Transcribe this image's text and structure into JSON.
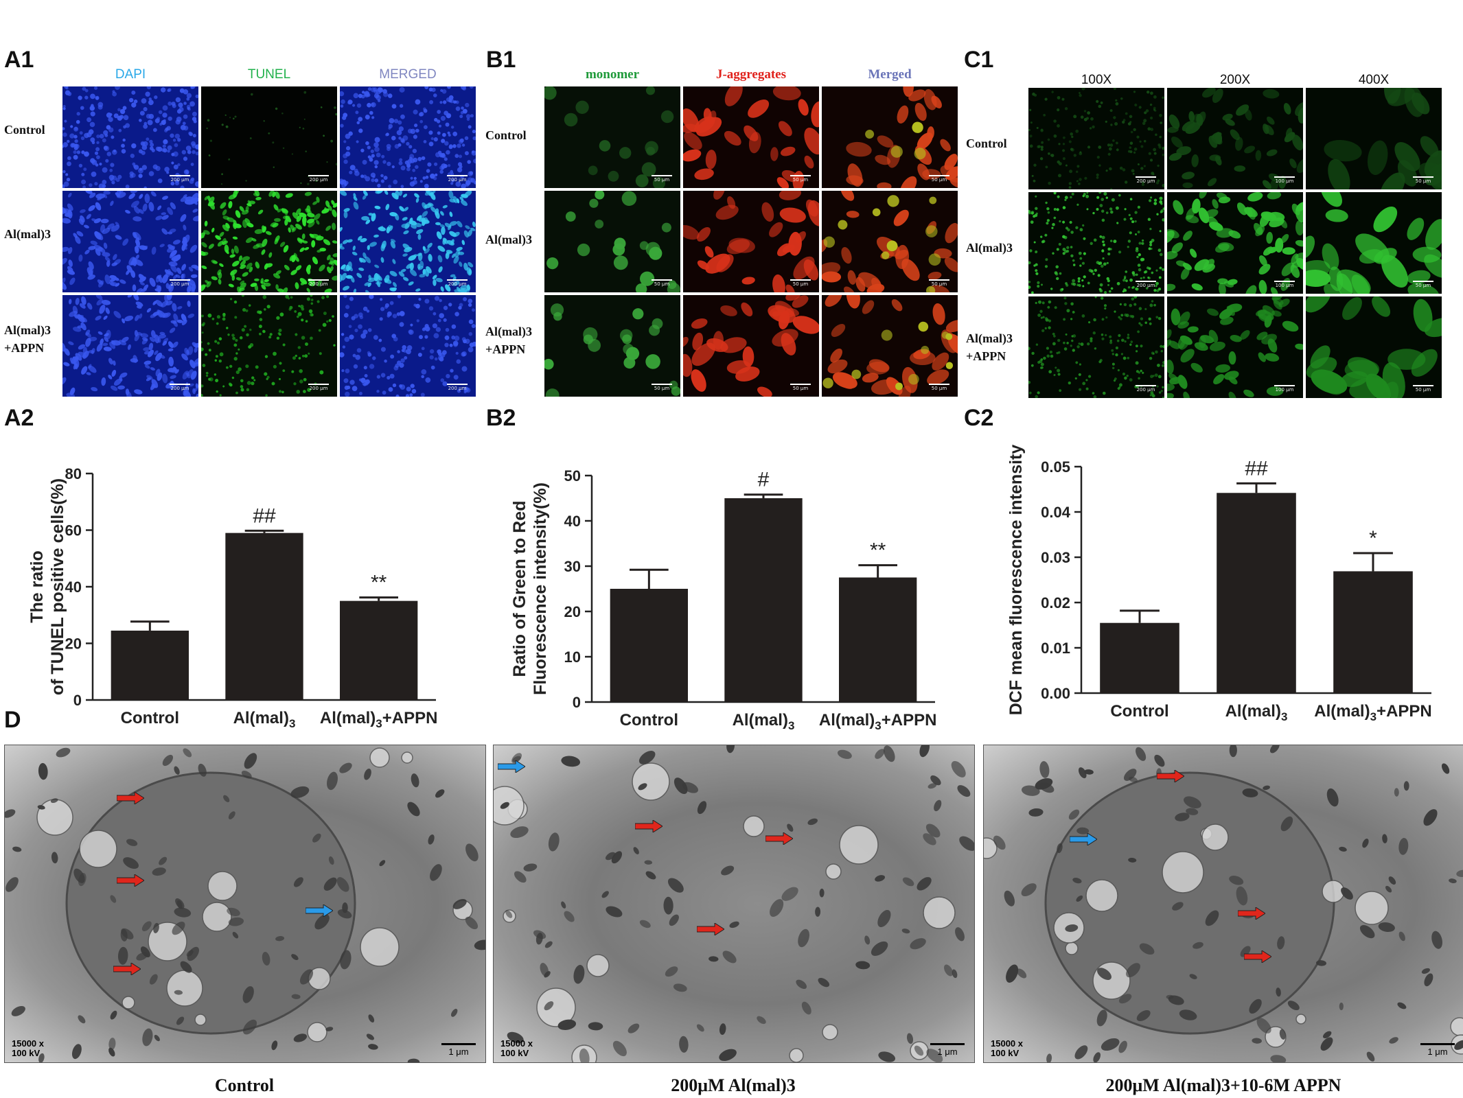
{
  "panels": {
    "a1": {
      "label": "A1",
      "cols": [
        "DAPI",
        "TUNEL",
        "MERGED"
      ],
      "col_colors": [
        "#2aa8e8",
        "#22b14c",
        "#7f86c0"
      ],
      "rows": [
        [
          "Control"
        ],
        [
          "Al(mal)3"
        ],
        [
          "Al(mal)3",
          "+APPN"
        ]
      ],
      "scale": "200 μm"
    },
    "b1": {
      "label": "B1",
      "cols": [
        "monomer",
        "J-aggregates",
        "Merged"
      ],
      "col_colors": [
        "#1f9a3a",
        "#e0221c",
        "#6a74b8"
      ],
      "rows": [
        [
          "Control"
        ],
        [
          "Al(mal)3"
        ],
        [
          "Al(mal)3",
          "+APPN"
        ]
      ],
      "scale": "50 μm"
    },
    "c1": {
      "label": "C1",
      "cols": [
        "100X",
        "200X",
        "400X"
      ],
      "col_colors": [
        "#111111",
        "#111111",
        "#111111"
      ],
      "rows": [
        [
          "Control"
        ],
        [
          "Al(mal)3"
        ],
        [
          "Al(mal)3",
          "+APPN"
        ]
      ],
      "scales": [
        "200 μm",
        "100 μm",
        "50 μm"
      ]
    },
    "a2": {
      "label": "A2"
    },
    "b2": {
      "label": "B2"
    },
    "c2": {
      "label": "C2"
    },
    "d": {
      "label": "D",
      "captions": [
        "Control",
        "200μM Al(mal)3",
        "200μM Al(mal)3+10-6M APPN"
      ],
      "mag_line1": "15000 x",
      "mag_line2": "100 kV",
      "scale": "1 μm"
    }
  },
  "chart_data": [
    {
      "type": "bar",
      "categories": [
        "Control",
        "Al(mal)3",
        "Al(mal)3+APPN"
      ],
      "values": [
        24.5,
        59,
        35
      ],
      "errors": [
        3.2,
        0.8,
        1.2
      ],
      "annotations": [
        "",
        "##",
        "**"
      ],
      "ylabel": [
        "The ratio",
        "of TUNEL positive cells(%)"
      ],
      "ylim": [
        0,
        80
      ],
      "yticks": [
        0,
        20,
        40,
        60,
        80
      ],
      "ytick_labels": [
        "0",
        "20",
        "40",
        "60",
        "80"
      ]
    },
    {
      "type": "bar",
      "categories": [
        "Control",
        "Al(mal)3",
        "Al(mal)3+APPN"
      ],
      "values": [
        25,
        45,
        27.5
      ],
      "errors": [
        4.2,
        0.8,
        2.7
      ],
      "annotations": [
        "",
        "#",
        "**"
      ],
      "ylabel": [
        "Ratio of Green to Red",
        "Fluorescence intensity(%)"
      ],
      "ylim": [
        0,
        50
      ],
      "yticks": [
        0,
        10,
        20,
        30,
        40,
        50
      ],
      "ytick_labels": [
        "0",
        "10",
        "20",
        "30",
        "40",
        "50"
      ]
    },
    {
      "type": "bar",
      "categories": [
        "Control",
        "Al(mal)3",
        "Al(mal)3+APPN"
      ],
      "values": [
        0.0155,
        0.0442,
        0.0269
      ],
      "errors": [
        0.0027,
        0.0021,
        0.004
      ],
      "annotations": [
        "",
        "##",
        "*"
      ],
      "ylabel": [
        "DCF mean  fluorescence intensity"
      ],
      "ylim": [
        0,
        0.05
      ],
      "yticks": [
        0,
        0.01,
        0.02,
        0.03,
        0.04,
        0.05
      ],
      "ytick_labels": [
        "0.00",
        "0.01",
        "0.02",
        "0.03",
        "0.04",
        "0.05"
      ]
    }
  ]
}
